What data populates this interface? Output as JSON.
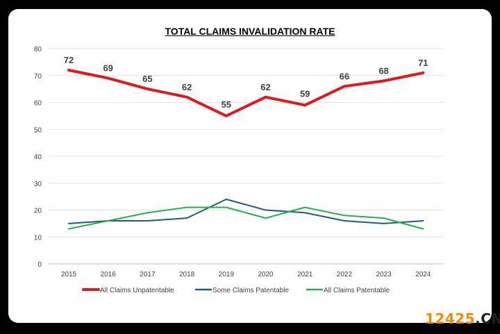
{
  "chart_data": {
    "type": "line",
    "title": "TOTAL CLAIMS INVALIDATION RATE",
    "xlabel": "",
    "ylabel": "",
    "categories": [
      "2015",
      "2016",
      "2017",
      "2018",
      "2019",
      "2020",
      "2021",
      "2022",
      "2023",
      "2024"
    ],
    "ylim": [
      0,
      80
    ],
    "yticks": [
      "0",
      "10",
      "20",
      "30",
      "40",
      "50",
      "60",
      "70",
      "80"
    ],
    "grid": true,
    "legend_position": "bottom",
    "series": [
      {
        "name": "All Claims Unpatentable",
        "color": "#e8141b",
        "width": "thick",
        "values": [
          72,
          69,
          65,
          62,
          55,
          62,
          59,
          66,
          68,
          71
        ],
        "labels": [
          "72",
          "69",
          "65",
          "62",
          "55",
          "62",
          "59",
          "66",
          "68",
          "71"
        ]
      },
      {
        "name": "Some Claims Patentable",
        "color": "#1f5a7a",
        "width": "thin",
        "values": [
          15,
          16,
          16,
          17,
          24,
          20,
          19,
          16,
          15,
          16
        ]
      },
      {
        "name": "All Claims Patentable",
        "color": "#22b14c",
        "width": "thin",
        "values": [
          13,
          16,
          19,
          21,
          21,
          17,
          21,
          18,
          17,
          13
        ]
      }
    ]
  },
  "watermark": {
    "number": "12425",
    "suffix": ".CN"
  }
}
